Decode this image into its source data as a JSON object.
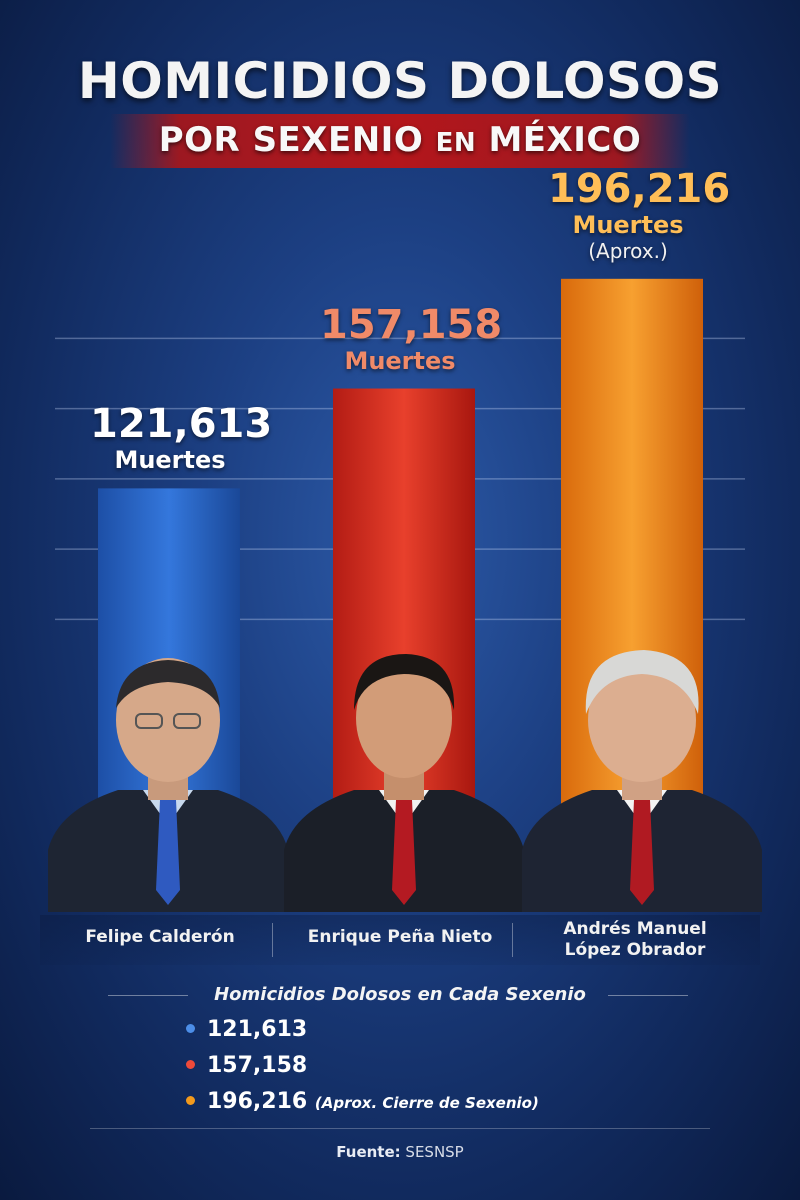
{
  "header": {
    "title": "HOMICIDIOS DOLOSOS",
    "subtitle_part1": "POR SEXENIO",
    "subtitle_part2": "EN",
    "subtitle_part3": "MÉXICO"
  },
  "chart_data": {
    "type": "bar",
    "title": "Homicidios Dolosos por Sexenio en México",
    "categories": [
      "Felipe Calderón",
      "Enrique Peña Nieto",
      "Andrés Manuel López Obrador"
    ],
    "values": [
      121613,
      157158,
      196216
    ],
    "value_labels": [
      "121,613",
      "157,158",
      "196,216"
    ],
    "unit_label": "Muertes",
    "notes": [
      "",
      "",
      "(Aprox.)"
    ],
    "ylim": [
      0,
      220000
    ],
    "grid": true,
    "colors": [
      "#2f6fd3",
      "#e03a2b",
      "#f28a17"
    ],
    "label_colors": [
      "#ffffff",
      "#f08a68",
      "#ffbe57"
    ]
  },
  "names": {
    "calderon": "Felipe Calderón",
    "pena_nieto": "Enrique Peña Nieto",
    "amlo_line1": "Andrés Manuel",
    "amlo_line2": "López Obrador"
  },
  "legend": {
    "title": "Homicidios Dolosos en Cada Sexenio",
    "items": [
      {
        "value": "121,613",
        "color": "#4c8ee8",
        "extra": ""
      },
      {
        "value": "157,158",
        "color": "#ee4a3a",
        "extra": ""
      },
      {
        "value": "196,216",
        "color": "#f39a1c",
        "extra": "(Aprox. Cierre de Sexenio)"
      }
    ]
  },
  "source": {
    "label": "Fuente:",
    "value": "SESNSP"
  }
}
